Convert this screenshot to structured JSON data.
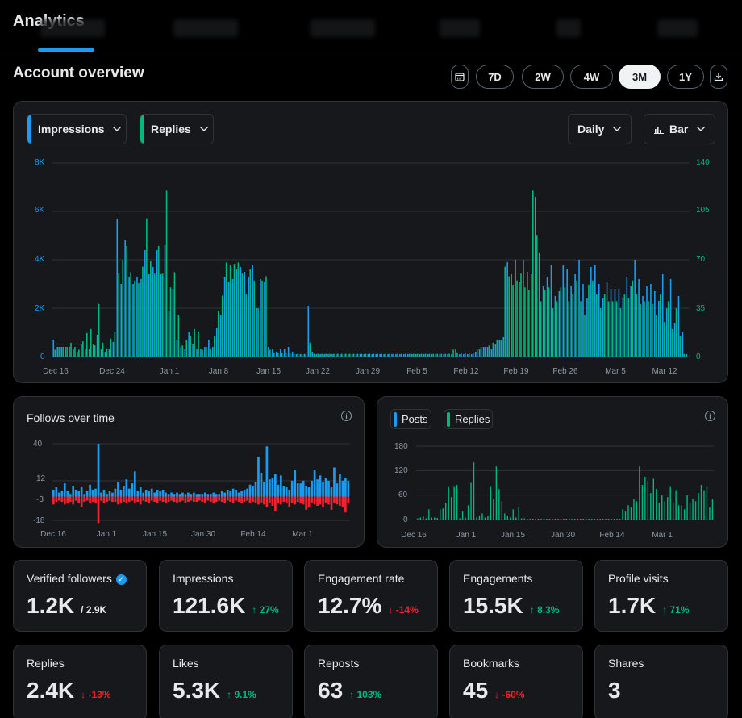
{
  "app": {
    "title": "Analytics"
  },
  "section": {
    "title": "Account overview"
  },
  "ranges": [
    "7D",
    "2W",
    "4W",
    "3M",
    "1Y"
  ],
  "active_range": "3M",
  "main_chart": {
    "metric1": "Impressions",
    "metric2": "Replies",
    "granularity": "Daily",
    "chart_type": "Bar"
  },
  "follows_chart": {
    "title": "Follows over time"
  },
  "posts_chart": {
    "legend": [
      "Posts",
      "Replies"
    ]
  },
  "colors": {
    "blue": "#1d9bf0",
    "green": "#00ba7c",
    "red": "#f4212e"
  },
  "chart_data": [
    {
      "type": "bar",
      "title": "Impressions / Replies (Daily)",
      "x_labels": [
        "Dec 16",
        "Dec 24",
        "Jan 1",
        "Jan 8",
        "Jan 15",
        "Jan 22",
        "Jan 29",
        "Feb 5",
        "Feb 12",
        "Feb 19",
        "Feb 26",
        "Mar 5",
        "Mar 12"
      ],
      "y_left": {
        "ticks": [
          "0",
          "2K",
          "4K",
          "6K",
          "8K"
        ],
        "range": [
          0,
          8000
        ]
      },
      "y_right": {
        "ticks": [
          "0",
          "35",
          "70",
          "105",
          "140"
        ],
        "range": [
          0,
          140
        ]
      },
      "series": [
        {
          "name": "Impressions",
          "axis": "left",
          "color": "#1d9bf0",
          "values": [
            700,
            400,
            400,
            400,
            400,
            300,
            200,
            500,
            300,
            300,
            500,
            900,
            300,
            200,
            300,
            600,
            5700,
            3000,
            4800,
            3300,
            3000,
            3300,
            3200,
            4400,
            3400,
            3700,
            4400,
            3400,
            4600,
            1900,
            2800,
            700,
            400,
            300,
            1000,
            500,
            300,
            300,
            400,
            700,
            400,
            1200,
            1700,
            3300,
            3100,
            3200,
            3600,
            3700,
            3500,
            3300,
            3800,
            2000,
            3200,
            3100,
            400,
            300,
            200,
            300,
            300,
            400,
            200,
            100,
            100,
            100,
            2100,
            200,
            100,
            100,
            100,
            100,
            100,
            100,
            100,
            100,
            100,
            100,
            100,
            100,
            100,
            100,
            100,
            100,
            100,
            100,
            100,
            100,
            100,
            100,
            100,
            100,
            100,
            100,
            100,
            100,
            100,
            100,
            100,
            100,
            100,
            100,
            100,
            300,
            100,
            100,
            100,
            100,
            200,
            300,
            400,
            400,
            300,
            500,
            700,
            800,
            3900,
            3400,
            4000,
            3100,
            4000,
            3500,
            3400,
            6600,
            4300,
            2900,
            3300,
            3800,
            2500,
            2700,
            3800,
            3600,
            2900,
            3400,
            4000,
            3000,
            2400,
            3700,
            3800,
            3000,
            2400,
            3100,
            2800,
            2800,
            2800,
            2400,
            3300,
            2900,
            4000,
            3200,
            2500,
            2900,
            3000,
            2700,
            2300,
            3400,
            2000,
            3200,
            1400,
            2500,
            1000,
            100
          ]
        },
        {
          "name": "Replies",
          "axis": "right",
          "color": "#00ba7c",
          "values": [
            5,
            7,
            7,
            7,
            10,
            7,
            5,
            11,
            17,
            20,
            8,
            38,
            10,
            6,
            13,
            18,
            60,
            70,
            80,
            61,
            55,
            53,
            65,
            100,
            69,
            60,
            80,
            60,
            120,
            50,
            61,
            30,
            8,
            12,
            15,
            20,
            18,
            5,
            7,
            6,
            15,
            33,
            44,
            68,
            66,
            67,
            68,
            60,
            45,
            63,
            55,
            35,
            55,
            58,
            5,
            3,
            3,
            3,
            3,
            3,
            2,
            2,
            2,
            2,
            10,
            2,
            2,
            2,
            2,
            2,
            2,
            2,
            2,
            2,
            2,
            2,
            2,
            2,
            2,
            2,
            2,
            2,
            2,
            2,
            2,
            2,
            2,
            2,
            2,
            2,
            2,
            2,
            2,
            2,
            2,
            2,
            2,
            2,
            2,
            2,
            5,
            3,
            3,
            3,
            3,
            3,
            5,
            7,
            7,
            8,
            10,
            12,
            12,
            65,
            58,
            52,
            55,
            60,
            50,
            48,
            120,
            88,
            40,
            48,
            50,
            35,
            40,
            50,
            50,
            40,
            45,
            55,
            40,
            30,
            52,
            55,
            45,
            35,
            45,
            40,
            40,
            40,
            35,
            45,
            42,
            55,
            45,
            38,
            40,
            40,
            38,
            30,
            45,
            25,
            40,
            20,
            35,
            15,
            2
          ]
        }
      ]
    },
    {
      "type": "bar",
      "title": "Follows over time",
      "x_labels": [
        "Dec 16",
        "Jan 1",
        "Jan 15",
        "Jan 30",
        "Feb 14",
        "Mar 1"
      ],
      "y_ticks": [
        "40",
        "12",
        "-3",
        "-18"
      ],
      "ylim": [
        -18,
        40
      ],
      "series": [
        {
          "name": "Follows",
          "color": "#1d9bf0",
          "values": [
            5,
            7,
            3,
            4,
            10,
            4,
            2,
            8,
            5,
            4,
            7,
            2,
            4,
            9,
            5,
            6,
            40,
            3,
            5,
            2,
            4,
            3,
            6,
            11,
            5,
            8,
            13,
            6,
            10,
            19,
            4,
            7,
            3,
            5,
            4,
            6,
            3,
            5,
            4,
            5,
            3,
            2,
            3,
            2,
            3,
            2,
            3,
            2,
            3,
            2,
            3,
            2,
            2,
            2,
            3,
            2,
            2,
            3,
            2,
            2,
            4,
            3,
            5,
            4,
            6,
            5,
            3,
            4,
            5,
            6,
            9,
            8,
            11,
            30,
            18,
            11,
            38,
            13,
            14,
            17,
            9,
            16,
            8,
            7,
            5,
            12,
            20,
            10,
            10,
            12,
            8,
            7,
            12,
            20,
            13,
            16,
            11,
            14,
            12,
            7,
            22,
            10,
            17,
            12,
            14,
            12
          ]
        },
        {
          "name": "Unfollows",
          "color": "#f4212e",
          "values": [
            -6,
            -4,
            -3,
            -4,
            -6,
            -5,
            -4,
            -6,
            -3,
            -5,
            -8,
            -4,
            -3,
            -5,
            -4,
            -5,
            -20,
            -3,
            -5,
            -4,
            -3,
            -4,
            -4,
            -6,
            -5,
            -4,
            -5,
            -4,
            -3,
            -5,
            -4,
            -6,
            -3,
            -4,
            -5,
            -3,
            -4,
            -5,
            -3,
            -4,
            -5,
            -4,
            -3,
            -4,
            -5,
            -4,
            -3,
            -5,
            -4,
            -3,
            -4,
            -4,
            -3,
            -4,
            -5,
            -3,
            -4,
            -5,
            -4,
            -3,
            -4,
            -5,
            -3,
            -4,
            -5,
            -3,
            -4,
            -5,
            -4,
            -3,
            -5,
            -4,
            -5,
            -6,
            -5,
            -6,
            -8,
            -5,
            -7,
            -11,
            -5,
            -6,
            -4,
            -5,
            -8,
            -5,
            -6,
            -4,
            -5,
            -6,
            -10,
            -8,
            -5,
            -6,
            -7,
            -6,
            -8,
            -5,
            -6,
            -10,
            -5,
            -6,
            -7,
            -8,
            -12,
            -5
          ]
        }
      ]
    },
    {
      "type": "bar",
      "title": "Posts / Replies",
      "x_labels": [
        "Dec 16",
        "Jan 1",
        "Jan 15",
        "Jan 30",
        "Feb 14",
        "Mar 1"
      ],
      "y_ticks": [
        "0",
        "60",
        "120",
        "180"
      ],
      "ylim": [
        0,
        180
      ],
      "series": [
        {
          "name": "Posts",
          "color": "#1d9bf0",
          "values": [
            0,
            0,
            0,
            0,
            0,
            0,
            0,
            0,
            0,
            0,
            0,
            0,
            0,
            0,
            0,
            0,
            0,
            0,
            0,
            0,
            0,
            0,
            0,
            0,
            0,
            0,
            0,
            0,
            0,
            0,
            0,
            0,
            0,
            0,
            0,
            0,
            0,
            0,
            0,
            0,
            0,
            0,
            0,
            0,
            0,
            0,
            0,
            0,
            0,
            0,
            0,
            0,
            0,
            0,
            0,
            0,
            0,
            0,
            0,
            0,
            0,
            0,
            0,
            0,
            0,
            0,
            0,
            0,
            0,
            0,
            0,
            0,
            0,
            0,
            0,
            0,
            0,
            0,
            0,
            0,
            0,
            0,
            0,
            0,
            0,
            0,
            0,
            0,
            0,
            0,
            0,
            0,
            0,
            0,
            0,
            0,
            0,
            0,
            0,
            0,
            0,
            0,
            0,
            0,
            0,
            0
          ]
        },
        {
          "name": "Replies",
          "color": "#00ba7c",
          "values": [
            3,
            5,
            8,
            3,
            25,
            5,
            5,
            4,
            25,
            27,
            40,
            80,
            55,
            80,
            85,
            3,
            20,
            5,
            35,
            90,
            140,
            5,
            10,
            15,
            5,
            8,
            80,
            50,
            130,
            75,
            45,
            15,
            10,
            5,
            25,
            5,
            30,
            3,
            3,
            2,
            2,
            2,
            2,
            2,
            2,
            2,
            2,
            2,
            2,
            2,
            2,
            2,
            2,
            2,
            2,
            2,
            2,
            2,
            2,
            2,
            2,
            2,
            2,
            2,
            2,
            2,
            2,
            2,
            2,
            2,
            2,
            2,
            2,
            25,
            20,
            35,
            30,
            50,
            45,
            130,
            85,
            105,
            95,
            65,
            100,
            75,
            40,
            60,
            45,
            55,
            80,
            40,
            70,
            35,
            35,
            25,
            60,
            40,
            50,
            45,
            65,
            85,
            70,
            80,
            30,
            50
          ]
        }
      ]
    }
  ],
  "main_axes": {
    "left": [
      "8K",
      "6K",
      "4K",
      "2K",
      "0"
    ],
    "right": [
      "140",
      "105",
      "70",
      "35",
      "0"
    ]
  },
  "follows_axes": {
    "y": [
      "40",
      "12",
      "-3",
      "-18"
    ]
  },
  "posts_axes": {
    "y": [
      "180",
      "120",
      "60",
      "0"
    ]
  },
  "stats": [
    {
      "label": "Verified followers",
      "value": "1.2K",
      "sub": "/ 2.9K",
      "change": "",
      "dir": "",
      "verified": true
    },
    {
      "label": "Impressions",
      "value": "121.6K",
      "sub": "",
      "change": "27%",
      "dir": "up"
    },
    {
      "label": "Engagement rate",
      "value": "12.7%",
      "sub": "",
      "change": "-14%",
      "dir": "down"
    },
    {
      "label": "Engagements",
      "value": "15.5K",
      "sub": "",
      "change": "8.3%",
      "dir": "up"
    },
    {
      "label": "Profile visits",
      "value": "1.7K",
      "sub": "",
      "change": "71%",
      "dir": "up"
    },
    {
      "label": "Replies",
      "value": "2.4K",
      "sub": "",
      "change": "-13%",
      "dir": "down"
    },
    {
      "label": "Likes",
      "value": "5.3K",
      "sub": "",
      "change": "9.1%",
      "dir": "up"
    },
    {
      "label": "Reposts",
      "value": "63",
      "sub": "",
      "change": "103%",
      "dir": "up"
    },
    {
      "label": "Bookmarks",
      "value": "45",
      "sub": "",
      "change": "-60%",
      "dir": "down"
    },
    {
      "label": "Shares",
      "value": "3",
      "sub": "",
      "change": "",
      "dir": ""
    }
  ]
}
